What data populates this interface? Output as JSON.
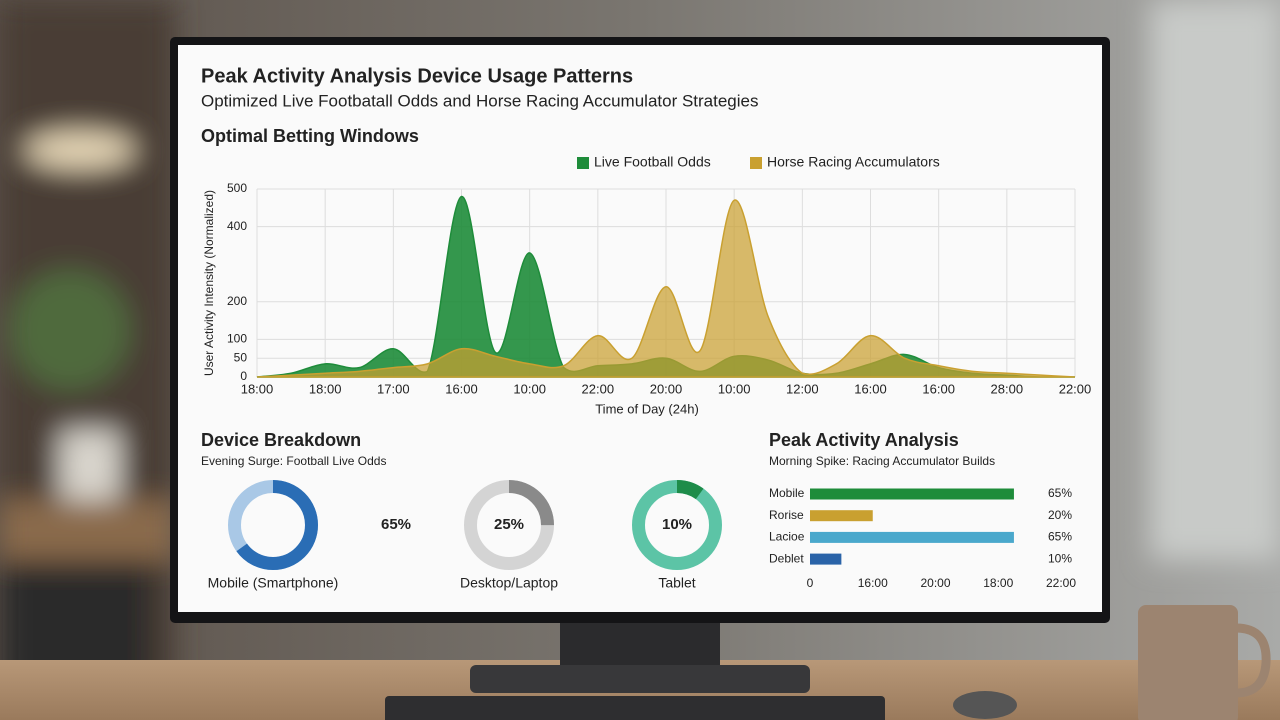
{
  "header": {
    "title": "Peak Activity Analysis Device Usage Patterns",
    "subtitle": "Optimized Live Footbatall Odds and Horse Racing Accumulator Strategies"
  },
  "chart_data": [
    {
      "type": "area",
      "title": "Optimal Betting Windows",
      "x_label": "Time of Day (24h)",
      "y_label": "User Activity Intensity (Normalized)",
      "categories": [
        "18:00",
        null,
        "18:00",
        null,
        "17:00",
        null,
        "16:00",
        null,
        "10:00",
        null,
        "22:00",
        null,
        "20:00",
        null,
        "10:00",
        null,
        "12:00",
        null,
        "16:00",
        null,
        "16:00",
        null,
        "28:00",
        null,
        "22:00"
      ],
      "series": [
        {
          "name": "Live Football Odds",
          "color": "#1e8c3a",
          "values": [
            0,
            10,
            35,
            25,
            75,
            15,
            480,
            65,
            330,
            25,
            30,
            35,
            50,
            15,
            55,
            45,
            10,
            10,
            35,
            60,
            25,
            10,
            5,
            0,
            0
          ]
        },
        {
          "name": "Horse Racing Accumulators",
          "color": "#c9a030",
          "values": [
            0,
            5,
            10,
            15,
            25,
            35,
            75,
            55,
            35,
            30,
            110,
            50,
            240,
            70,
            470,
            160,
            10,
            35,
            110,
            50,
            30,
            15,
            10,
            5,
            0
          ]
        }
      ],
      "ylim": [
        0,
        500
      ],
      "yticks": [
        0,
        50,
        100,
        200,
        400,
        500
      ],
      "grid": true,
      "legend": "top"
    },
    {
      "type": "donut",
      "title": "Device Breakdown",
      "subtitle": "Evening Surge: Football Live Odds",
      "categories": [
        "Mobile (Smartphone)",
        "Desktop/Laptop",
        "Tablet"
      ],
      "values": [
        65,
        25,
        10
      ],
      "value_labels": [
        "65%",
        "25%",
        "10%"
      ],
      "colors": [
        "#2a6db5",
        "#8a8a8a",
        "#1e8c4a"
      ]
    },
    {
      "type": "hbar",
      "title": "Peak Activity Analysis",
      "subtitle": "Morning Spike: Racing Accumulator Builds",
      "categories": [
        "Mobile",
        "Rorise",
        "Lacioe",
        "Deblet"
      ],
      "values": [
        65,
        20,
        65,
        10
      ],
      "value_labels": [
        "65%",
        "20%",
        "65%",
        "10%"
      ],
      "colors": [
        "#1e8c3a",
        "#c9a030",
        "#4aa8cc",
        "#2a63a8"
      ],
      "xlim": [
        0,
        80
      ],
      "xticks": [
        0,
        {
          "value": 20,
          "label": "16:00"
        },
        {
          "value": 40,
          "label": "20:00"
        },
        {
          "value": 60,
          "label": "18:00"
        },
        {
          "value": 80,
          "label": "22:00"
        }
      ]
    }
  ]
}
